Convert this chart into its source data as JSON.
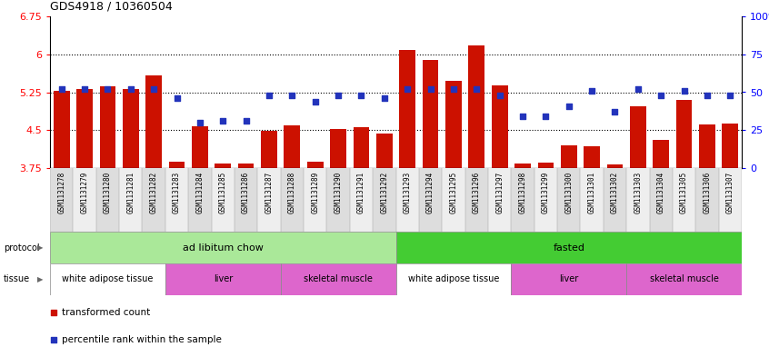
{
  "title": "GDS4918 / 10360504",
  "samples": [
    "GSM1131278",
    "GSM1131279",
    "GSM1131280",
    "GSM1131281",
    "GSM1131282",
    "GSM1131283",
    "GSM1131284",
    "GSM1131285",
    "GSM1131286",
    "GSM1131287",
    "GSM1131288",
    "GSM1131289",
    "GSM1131290",
    "GSM1131291",
    "GSM1131292",
    "GSM1131293",
    "GSM1131294",
    "GSM1131295",
    "GSM1131296",
    "GSM1131297",
    "GSM1131298",
    "GSM1131299",
    "GSM1131300",
    "GSM1131301",
    "GSM1131302",
    "GSM1131303",
    "GSM1131304",
    "GSM1131305",
    "GSM1131306",
    "GSM1131307"
  ],
  "bar_values": [
    5.27,
    5.32,
    5.36,
    5.32,
    5.58,
    3.87,
    4.57,
    3.84,
    3.84,
    4.49,
    4.6,
    3.88,
    4.53,
    4.55,
    4.44,
    6.09,
    5.88,
    5.47,
    6.17,
    5.38,
    3.84,
    3.86,
    4.2,
    4.18,
    3.83,
    4.98,
    4.3,
    5.1,
    4.62,
    4.63
  ],
  "dot_values": [
    52,
    52,
    52,
    52,
    52,
    46,
    30,
    31,
    31,
    48,
    48,
    44,
    48,
    48,
    46,
    52,
    52,
    52,
    52,
    48,
    34,
    34,
    41,
    51,
    37,
    52,
    48,
    51,
    48,
    48
  ],
  "ylim_left": [
    3.75,
    6.75
  ],
  "ylim_right": [
    0,
    100
  ],
  "yticks_left": [
    3.75,
    4.5,
    5.25,
    6.0,
    6.75
  ],
  "ytick_labels_left": [
    "3.75",
    "4.5",
    "5.25",
    "6",
    "6.75"
  ],
  "yticks_right": [
    0,
    25,
    50,
    75,
    100
  ],
  "ytick_labels_right": [
    "0",
    "25",
    "50",
    "75",
    "100%"
  ],
  "hlines": [
    4.5,
    5.25,
    6.0
  ],
  "bar_color": "#cc1100",
  "dot_color": "#2233bb",
  "background_color": "#ffffff",
  "protocol_groups": [
    {
      "label": "ad libitum chow",
      "start": 0,
      "end": 15,
      "color": "#aae899"
    },
    {
      "label": "fasted",
      "start": 15,
      "end": 30,
      "color": "#44cc33"
    }
  ],
  "tissue_groups": [
    {
      "label": "white adipose tissue",
      "start": 0,
      "end": 5,
      "color": "#ffffff"
    },
    {
      "label": "liver",
      "start": 5,
      "end": 10,
      "color": "#dd66cc"
    },
    {
      "label": "skeletal muscle",
      "start": 10,
      "end": 15,
      "color": "#dd66cc"
    },
    {
      "label": "white adipose tissue",
      "start": 15,
      "end": 20,
      "color": "#ffffff"
    },
    {
      "label": "liver",
      "start": 20,
      "end": 25,
      "color": "#dd66cc"
    },
    {
      "label": "skeletal muscle",
      "start": 25,
      "end": 30,
      "color": "#dd66cc"
    }
  ],
  "xtick_bg_even": "#dddddd",
  "xtick_bg_odd": "#eeeeee",
  "legend_items": [
    {
      "label": "transformed count",
      "color": "#cc1100"
    },
    {
      "label": "percentile rank within the sample",
      "color": "#2233bb"
    }
  ]
}
